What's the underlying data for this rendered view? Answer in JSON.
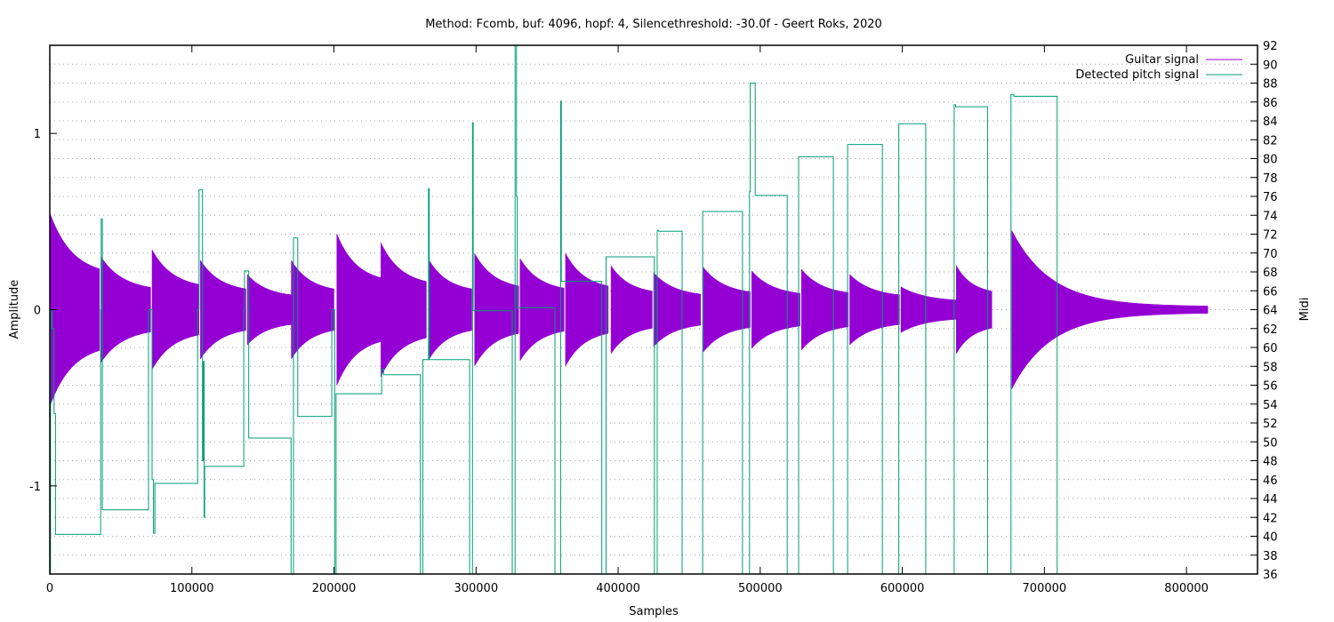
{
  "chart_data": {
    "type": "line",
    "title": "Method: Fcomb, buf: 4096, hopf: 4, Silencethreshold: -30.0f - Geert Roks, 2020",
    "xlabel": "Samples",
    "ylabel": "Amplitude",
    "y2label": "Midi",
    "xlim": [
      0,
      850000
    ],
    "ylim": [
      -1.5,
      1.5
    ],
    "y2lim": [
      36,
      92
    ],
    "x_ticks": [
      0,
      100000,
      200000,
      300000,
      400000,
      500000,
      600000,
      700000,
      800000
    ],
    "x_tick_labels": [
      "0",
      "100000",
      "200000",
      "300000",
      "400000",
      "500000",
      "600000",
      "700000",
      "800000"
    ],
    "y_ticks": [
      -1,
      0,
      1
    ],
    "y_tick_labels": [
      "-1",
      "0",
      "1"
    ],
    "y2_ticks": [
      36,
      38,
      40,
      42,
      44,
      46,
      48,
      50,
      52,
      54,
      56,
      58,
      60,
      62,
      64,
      66,
      68,
      70,
      72,
      74,
      76,
      78,
      80,
      82,
      84,
      86,
      88,
      90,
      92
    ],
    "y2_tick_labels": [
      "36",
      "38",
      "40",
      "42",
      "44",
      "46",
      "48",
      "50",
      "52",
      "54",
      "56",
      "58",
      "60",
      "62",
      "64",
      "66",
      "68",
      "70",
      "72",
      "74",
      "76",
      "78",
      "80",
      "82",
      "84",
      "86",
      "88",
      "90",
      "92"
    ],
    "grid": true,
    "legend_position": "top-right",
    "series": [
      {
        "name": "Guitar signal",
        "color": "#9400d3",
        "kind": "waveform-envelope",
        "axis": "y",
        "notes": [
          {
            "start": 0,
            "end": 35000,
            "peak": 0.55
          },
          {
            "start": 36000,
            "end": 71000,
            "peak": 0.3
          },
          {
            "start": 72000,
            "end": 105000,
            "peak": 0.34
          },
          {
            "start": 106000,
            "end": 138000,
            "peak": 0.28
          },
          {
            "start": 139000,
            "end": 170000,
            "peak": 0.2
          },
          {
            "start": 170000,
            "end": 200000,
            "peak": 0.28
          },
          {
            "start": 202000,
            "end": 233000,
            "peak": 0.43
          },
          {
            "start": 233000,
            "end": 265000,
            "peak": 0.38
          },
          {
            "start": 267000,
            "end": 297000,
            "peak": 0.28
          },
          {
            "start": 299000,
            "end": 330000,
            "peak": 0.32
          },
          {
            "start": 331000,
            "end": 362000,
            "peak": 0.29
          },
          {
            "start": 363000,
            "end": 393000,
            "peak": 0.32
          },
          {
            "start": 395000,
            "end": 424000,
            "peak": 0.25
          },
          {
            "start": 425000,
            "end": 458000,
            "peak": 0.21
          },
          {
            "start": 460000,
            "end": 493000,
            "peak": 0.24
          },
          {
            "start": 494000,
            "end": 528000,
            "peak": 0.22
          },
          {
            "start": 529000,
            "end": 562000,
            "peak": 0.23
          },
          {
            "start": 563000,
            "end": 598000,
            "peak": 0.2
          },
          {
            "start": 599000,
            "end": 638000,
            "peak": 0.13
          },
          {
            "start": 638000,
            "end": 663000,
            "peak": 0.25
          },
          {
            "start": 677000,
            "end": 815000,
            "peak": 0.45
          }
        ]
      },
      {
        "name": "Detected pitch signal",
        "color": "#009e73",
        "kind": "step",
        "axis": "y2",
        "points": [
          [
            0,
            36
          ],
          [
            500,
            64
          ],
          [
            1500,
            62
          ],
          [
            3000,
            53
          ],
          [
            4000,
            40.2
          ],
          [
            35500,
            40.2
          ],
          [
            35800,
            64
          ],
          [
            36200,
            73.6
          ],
          [
            37000,
            42.8
          ],
          [
            69000,
            42.8
          ],
          [
            69500,
            64
          ],
          [
            72000,
            46
          ],
          [
            73000,
            40.3
          ],
          [
            74000,
            45.6
          ],
          [
            103000,
            45.6
          ],
          [
            104000,
            64
          ],
          [
            105000,
            76.7
          ],
          [
            107000,
            76.7
          ],
          [
            107500,
            48
          ],
          [
            108000,
            58.5
          ],
          [
            108600,
            42
          ],
          [
            109000,
            47.4
          ],
          [
            136000,
            47.4
          ],
          [
            136500,
            64
          ],
          [
            137000,
            68.1
          ],
          [
            139000,
            68.1
          ],
          [
            140000,
            50.4
          ],
          [
            169500,
            50.4
          ],
          [
            169800,
            36
          ],
          [
            171000,
            36
          ],
          [
            171500,
            71.6
          ],
          [
            174000,
            71.6
          ],
          [
            174500,
            52.7
          ],
          [
            198000,
            52.7
          ],
          [
            198500,
            64
          ],
          [
            200500,
            36
          ],
          [
            201000,
            36
          ],
          [
            201500,
            55.1
          ],
          [
            233000,
            55.1
          ],
          [
            233500,
            57.7
          ],
          [
            234500,
            57.7
          ],
          [
            235000,
            57.1
          ],
          [
            260500,
            57.1
          ],
          [
            260800,
            36
          ],
          [
            262000,
            36
          ],
          [
            262500,
            58.7
          ],
          [
            265000,
            58.7
          ],
          [
            266500,
            76.8
          ],
          [
            267000,
            58.7
          ],
          [
            295000,
            58.7
          ],
          [
            295500,
            36
          ],
          [
            297000,
            36
          ],
          [
            297500,
            83.8
          ],
          [
            298000,
            63.9
          ],
          [
            325000,
            63.9
          ],
          [
            325500,
            36
          ],
          [
            327000,
            36
          ],
          [
            327500,
            92
          ],
          [
            328500,
            76
          ],
          [
            329000,
            64.2
          ],
          [
            355000,
            64.2
          ],
          [
            355500,
            36
          ],
          [
            359000,
            36
          ],
          [
            359500,
            86.1
          ],
          [
            360000,
            67
          ],
          [
            388000,
            67
          ],
          [
            388500,
            36
          ],
          [
            391000,
            36
          ],
          [
            391500,
            69.6
          ],
          [
            425000,
            69.6
          ],
          [
            425500,
            36
          ],
          [
            427000,
            36
          ],
          [
            427500,
            72.4
          ],
          [
            428500,
            72.3
          ],
          [
            444500,
            72.3
          ],
          [
            445000,
            36
          ],
          [
            459000,
            36
          ],
          [
            459500,
            74.4
          ],
          [
            487000,
            74.4
          ],
          [
            487500,
            36
          ],
          [
            492000,
            36
          ],
          [
            492500,
            76.5
          ],
          [
            493000,
            88
          ],
          [
            496000,
            88
          ],
          [
            496500,
            76.1
          ],
          [
            518500,
            76.1
          ],
          [
            519000,
            36
          ],
          [
            526500,
            36
          ],
          [
            527000,
            80.2
          ],
          [
            551000,
            80.2
          ],
          [
            551500,
            36
          ],
          [
            561000,
            36
          ],
          [
            561500,
            81.5
          ],
          [
            585500,
            81.5
          ],
          [
            586000,
            36
          ],
          [
            597000,
            36
          ],
          [
            597500,
            83.7
          ],
          [
            616000,
            83.7
          ],
          [
            616500,
            36
          ],
          [
            636000,
            36
          ],
          [
            636500,
            85.7
          ],
          [
            637500,
            85.5
          ],
          [
            659500,
            85.5
          ],
          [
            660000,
            36
          ],
          [
            676000,
            36
          ],
          [
            676500,
            86.8
          ],
          [
            678500,
            86.6
          ],
          [
            708500,
            86.6
          ],
          [
            709000,
            36
          ],
          [
            850000,
            36
          ]
        ]
      }
    ]
  }
}
